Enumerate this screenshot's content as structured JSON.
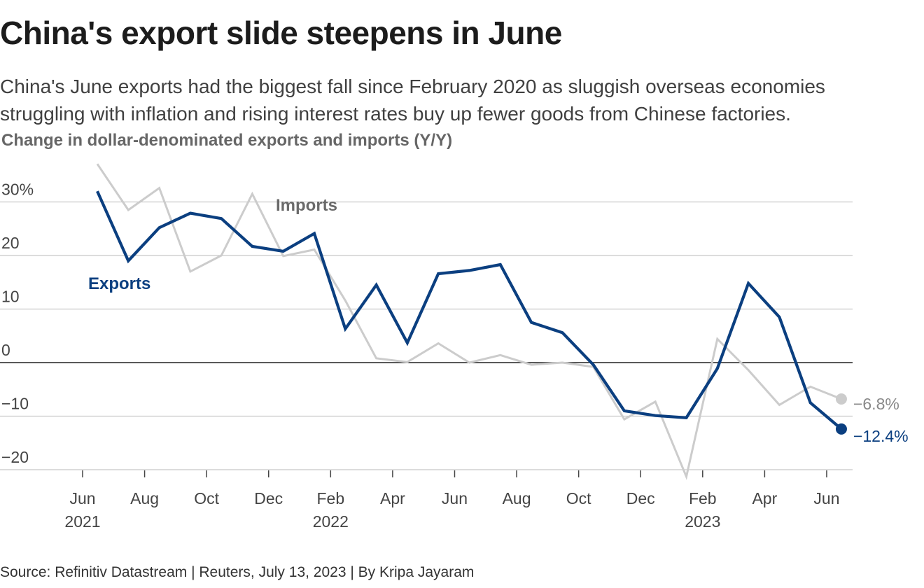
{
  "header": {
    "title": "China's export slide steepens in June",
    "subtitle": "China's June exports had the biggest fall since February 2020 as sluggish overseas economies struggling with inflation and rising interest rates buy up fewer goods from Chinese factories."
  },
  "footer": {
    "source": "Source: Refinitiv Datastream | Reuters, July 13, 2023 | By Kripa Jayaram"
  },
  "chart_data": {
    "type": "line",
    "title": "Change in dollar-denominated exports and imports (Y/Y)",
    "x": [
      "2021-06",
      "2021-07",
      "2021-08",
      "2021-09",
      "2021-10",
      "2021-11",
      "2021-12",
      "2022-01",
      "2022-02",
      "2022-03",
      "2022-04",
      "2022-05",
      "2022-06",
      "2022-07",
      "2022-08",
      "2022-09",
      "2022-10",
      "2022-11",
      "2022-12",
      "2023-01",
      "2023-02",
      "2023-03",
      "2023-04",
      "2023-05",
      "2023-06"
    ],
    "series": [
      {
        "name": "Exports",
        "color": "#0b3f80",
        "values": [
          32.0,
          19.0,
          25.2,
          27.9,
          26.9,
          21.7,
          20.8,
          24.1,
          6.3,
          14.5,
          3.7,
          16.6,
          17.2,
          18.3,
          7.5,
          5.6,
          -0.4,
          -9.0,
          -9.9,
          -10.3,
          -1.1,
          14.8,
          8.5,
          -7.5,
          -12.4
        ],
        "end_label": "−12.4%"
      },
      {
        "name": "Imports",
        "color": "#cccccc",
        "values": [
          37.1,
          28.5,
          32.6,
          17.0,
          20.0,
          31.5,
          19.9,
          21.1,
          11.6,
          0.8,
          0.1,
          3.6,
          0.0,
          1.4,
          -0.4,
          0.0,
          -0.8,
          -10.6,
          -7.3,
          -21.3,
          4.4,
          -1.4,
          -7.9,
          -4.5,
          -6.8
        ],
        "end_label": "−6.8%"
      }
    ],
    "ylim": [
      -20,
      40
    ],
    "y_ticks": [
      {
        "value": 30,
        "label": "30%"
      },
      {
        "value": 20,
        "label": "20"
      },
      {
        "value": 10,
        "label": "10"
      },
      {
        "value": 0,
        "label": "0"
      },
      {
        "value": -10,
        "label": "−10"
      },
      {
        "value": -20,
        "label": "−20"
      }
    ],
    "x_ticks": [
      {
        "value": "2021-06",
        "label": "Jun",
        "year": "2021"
      },
      {
        "value": "2021-08",
        "label": "Aug",
        "year": ""
      },
      {
        "value": "2021-10",
        "label": "Oct",
        "year": ""
      },
      {
        "value": "2021-12",
        "label": "Dec",
        "year": ""
      },
      {
        "value": "2022-02",
        "label": "Feb",
        "year": "2022"
      },
      {
        "value": "2022-04",
        "label": "Apr",
        "year": ""
      },
      {
        "value": "2022-06",
        "label": "Jun",
        "year": ""
      },
      {
        "value": "2022-08",
        "label": "Aug",
        "year": ""
      },
      {
        "value": "2022-10",
        "label": "Oct",
        "year": ""
      },
      {
        "value": "2022-12",
        "label": "Dec",
        "year": ""
      },
      {
        "value": "2023-02",
        "label": "Feb",
        "year": "2023"
      },
      {
        "value": "2023-04",
        "label": "Apr",
        "year": ""
      },
      {
        "value": "2023-06",
        "label": "Jun",
        "year": ""
      }
    ],
    "grid": true,
    "legend": "inline labels"
  }
}
